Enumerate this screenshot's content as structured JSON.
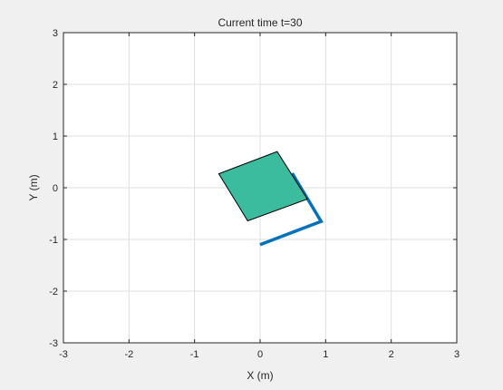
{
  "chart_data": {
    "type": "scatter",
    "title": "Current time t=30",
    "xlabel": "X (m)",
    "ylabel": "Y (m)",
    "xlim": [
      -3,
      3
    ],
    "ylim": [
      -3,
      3
    ],
    "xticks": [
      -3,
      -2,
      -1,
      0,
      1,
      2,
      3
    ],
    "yticks": [
      -3,
      -2,
      -1,
      0,
      1,
      2,
      3
    ],
    "xtick_labels": [
      "-3",
      "-2",
      "-1",
      "0",
      "1",
      "2",
      "3"
    ],
    "ytick_labels": [
      "-3",
      "-2",
      "-1",
      "0",
      "1",
      "2",
      "3"
    ],
    "grid": true,
    "legend": "none",
    "series": [
      {
        "kind": "line",
        "color": "#0072bd",
        "points": [
          [
            0.0,
            -1.1
          ],
          [
            0.93,
            -0.65
          ],
          [
            0.49,
            0.28
          ]
        ]
      },
      {
        "kind": "polygon",
        "fill": "#3bbc9f",
        "edge": "#000000",
        "points": [
          [
            -0.63,
            0.27
          ],
          [
            0.26,
            0.7
          ],
          [
            0.72,
            -0.22
          ],
          [
            -0.19,
            -0.64
          ]
        ]
      }
    ]
  }
}
